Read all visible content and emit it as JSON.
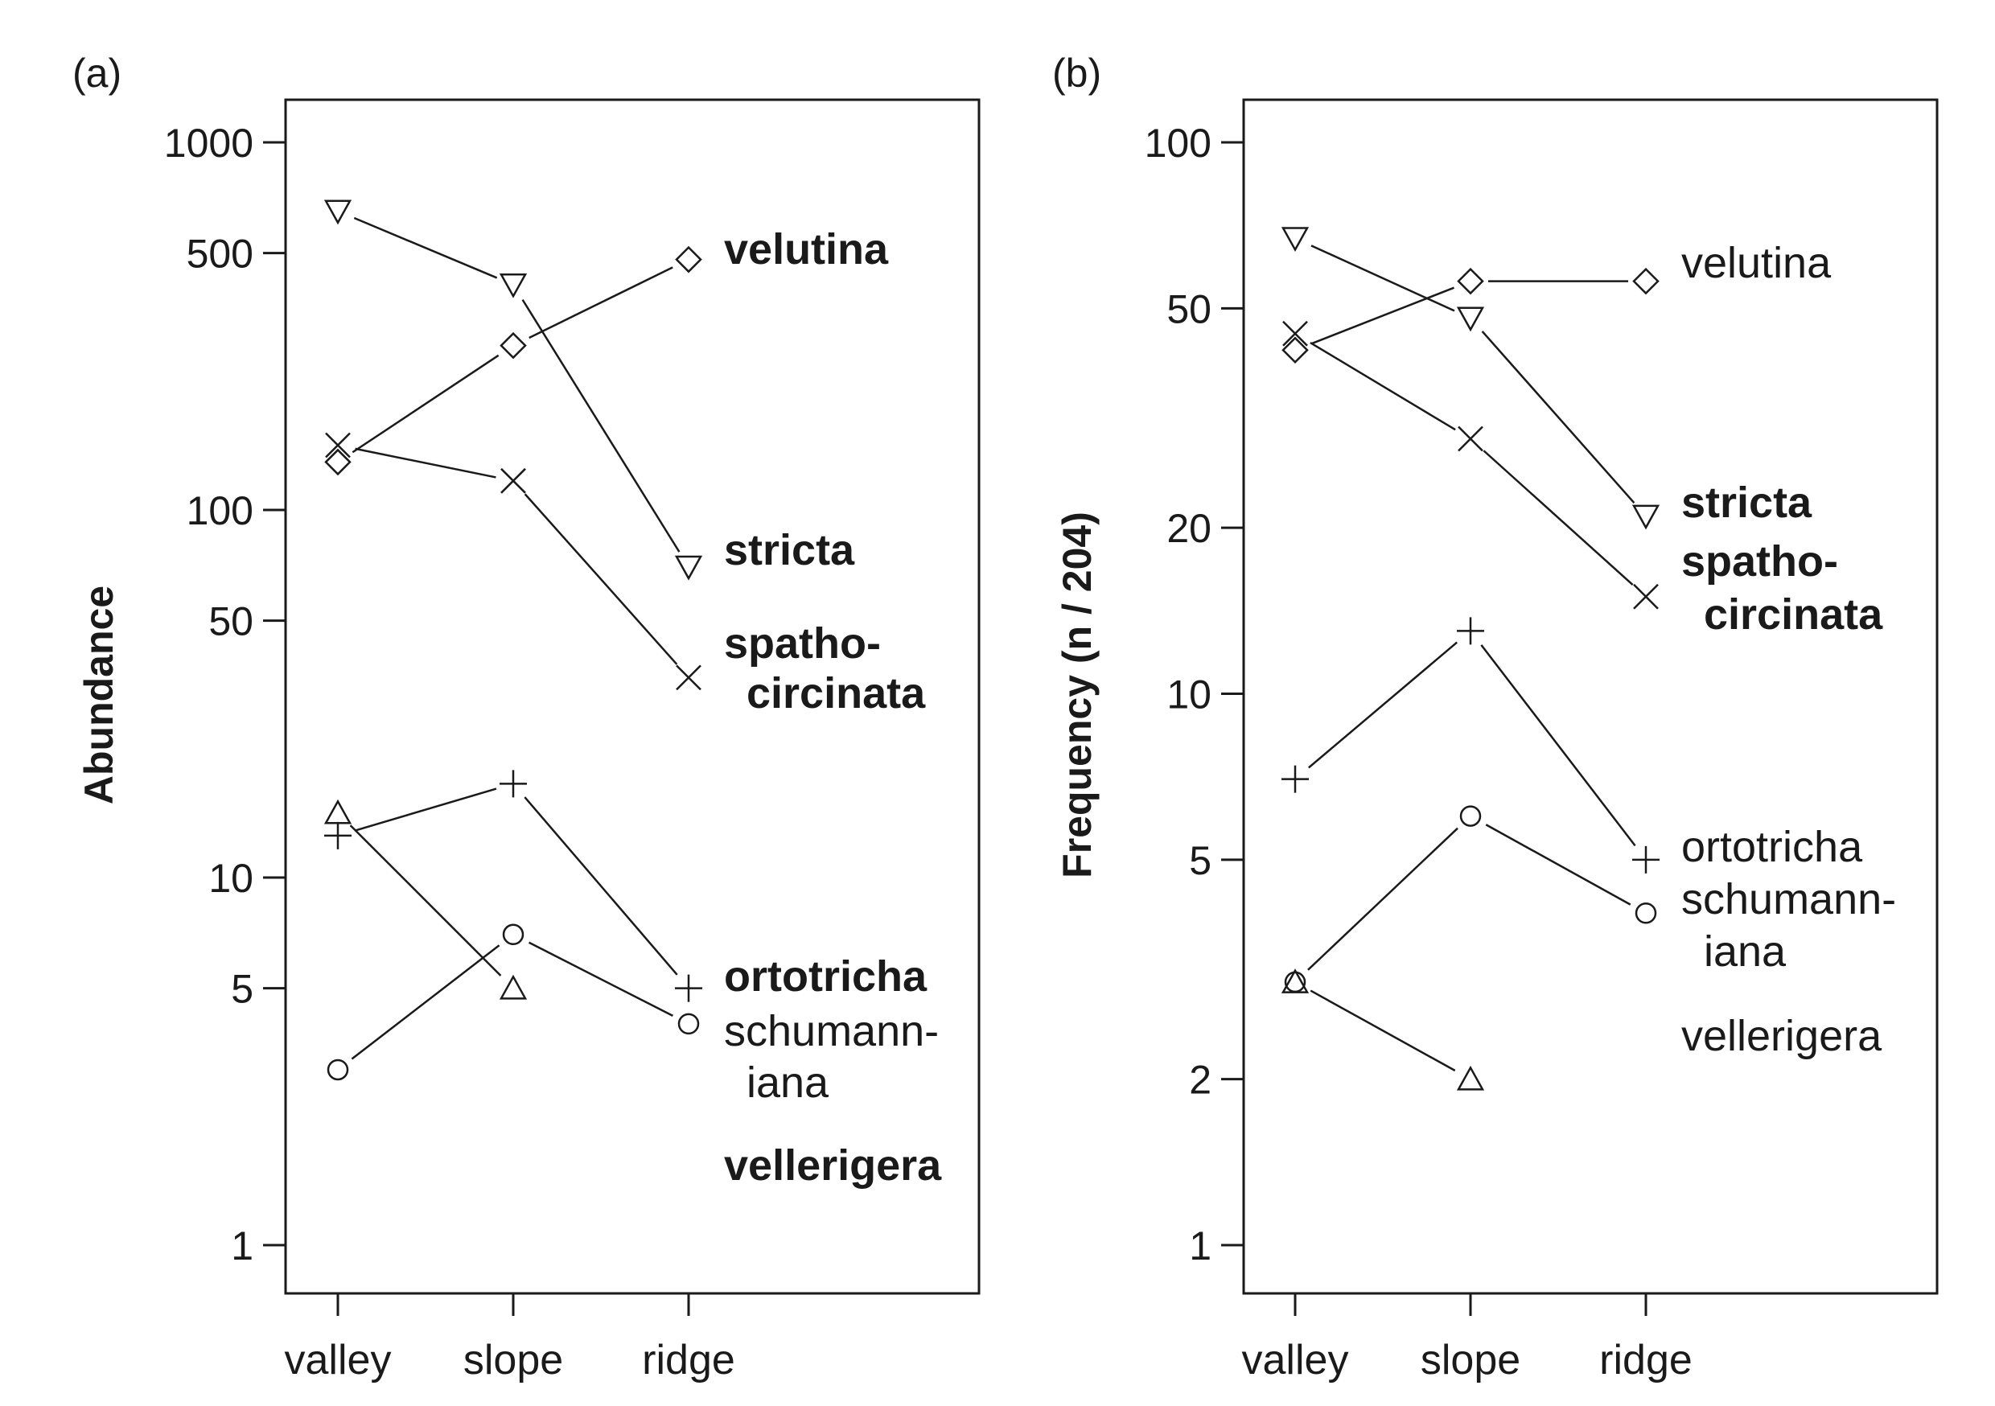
{
  "panels": [
    {
      "tag": "(a)"
    },
    {
      "tag": "(b)"
    }
  ],
  "chart_data": [
    {
      "type": "line",
      "panel": "(a)",
      "ylabel": "Abundance",
      "xlabel": "",
      "y_scale": "log",
      "ylim": [
        1,
        1000
      ],
      "categories": [
        "valley",
        "slope",
        "ridge"
      ],
      "yticks": [
        1,
        5,
        10,
        50,
        100,
        500,
        1000
      ],
      "ytick_labels": [
        "1",
        "5",
        "10",
        "50",
        "100",
        "500",
        "1000"
      ],
      "series": [
        {
          "name": "velutina",
          "marker": "diamond",
          "bold": true,
          "values": [
            135,
            280,
            480
          ]
        },
        {
          "name": "stricta",
          "marker": "triangle-down",
          "bold": true,
          "values": [
            650,
            410,
            70
          ]
        },
        {
          "name": "spatho-circinata",
          "marker": "cross",
          "bold": true,
          "values": [
            150,
            120,
            35
          ]
        },
        {
          "name": "ortotricha",
          "marker": "plus",
          "bold": true,
          "values": [
            13,
            18,
            5
          ]
        },
        {
          "name": "schumanniana",
          "marker": "circle",
          "bold": false,
          "values": [
            3,
            7,
            4
          ]
        },
        {
          "name": "vellerigera",
          "marker": "triangle-up",
          "bold": true,
          "values": [
            15,
            5,
            null
          ]
        }
      ],
      "label_lines": {
        "velutina": [
          "velutina"
        ],
        "stricta": [
          "stricta"
        ],
        "spatho-circinata": [
          "spatho-",
          "circinata"
        ],
        "ortotricha": [
          "ortotricha"
        ],
        "schumanniana": [
          "schumann-",
          "iana"
        ],
        "vellerigera": [
          "vellerigera"
        ]
      }
    },
    {
      "type": "line",
      "panel": "(b)",
      "ylabel": "Frequency (n / 204)",
      "xlabel": "",
      "y_scale": "log",
      "ylim": [
        1,
        100
      ],
      "categories": [
        "valley",
        "slope",
        "ridge"
      ],
      "yticks": [
        1,
        2,
        5,
        10,
        20,
        50,
        100
      ],
      "ytick_labels": [
        "1",
        "2",
        "5",
        "10",
        "20",
        "50",
        "100"
      ],
      "series": [
        {
          "name": "velutina",
          "marker": "diamond",
          "bold": false,
          "values": [
            42,
            56,
            56
          ]
        },
        {
          "name": "stricta",
          "marker": "triangle-down",
          "bold": true,
          "values": [
            67,
            48,
            21
          ]
        },
        {
          "name": "spatho-circinata",
          "marker": "cross",
          "bold": true,
          "values": [
            45,
            29,
            15
          ]
        },
        {
          "name": "ortotricha",
          "marker": "plus",
          "bold": false,
          "values": [
            7,
            13,
            5
          ]
        },
        {
          "name": "schumanniana",
          "marker": "circle",
          "bold": false,
          "values": [
            3,
            6,
            4
          ]
        },
        {
          "name": "vellerigera",
          "marker": "triangle-up",
          "bold": false,
          "values": [
            3,
            2,
            null
          ]
        }
      ],
      "label_lines": {
        "velutina": [
          "velutina"
        ],
        "stricta": [
          "stricta"
        ],
        "spatho-circinata": [
          "spatho-",
          "circinata"
        ],
        "ortotricha": [
          "ortotricha"
        ],
        "schumanniana": [
          "schumann-",
          "iana"
        ],
        "vellerigera": [
          "vellerigera"
        ]
      }
    }
  ]
}
